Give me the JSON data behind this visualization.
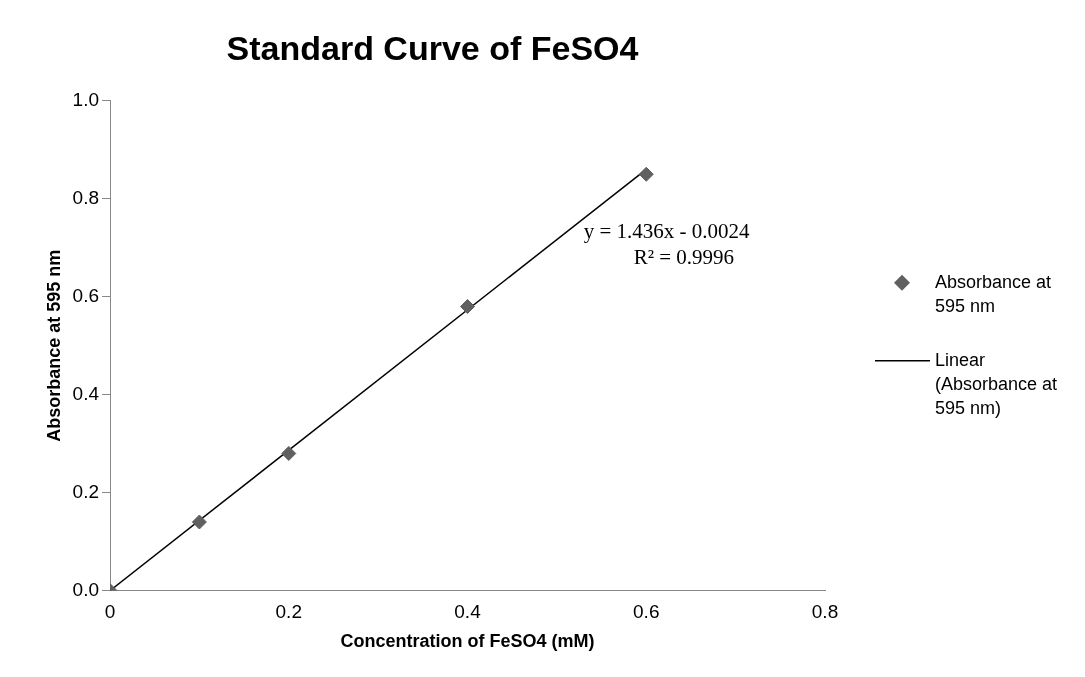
{
  "chart_data": {
    "type": "scatter",
    "title": "Standard Curve of FeSO4",
    "xlabel": "Concentration of FeSO4 (mM)",
    "ylabel": "Absorbance at 595 nm",
    "x": [
      0,
      0.1,
      0.2,
      0.4,
      0.6
    ],
    "series": [
      {
        "name": "Absorbance at 595 nm",
        "color": "#606060",
        "marker": "diamond",
        "values": [
          0,
          0.14,
          0.28,
          0.58,
          0.85
        ]
      },
      {
        "name": "Linear (Absorbance at 595 nm)",
        "type": "line",
        "color": "#000000",
        "marker": "none",
        "line_style": "solid",
        "x": [
          0,
          0.6
        ],
        "values": [
          0,
          0.86
        ]
      }
    ],
    "xlim": [
      0,
      0.8
    ],
    "xticks": [
      {
        "value": 0,
        "label": "0"
      },
      0.2,
      0.4,
      0.6,
      0.8
    ],
    "ylim": [
      0,
      1.0
    ],
    "yticks": [
      {
        "value": 0,
        "label": "0.0"
      },
      0.2,
      0.4,
      0.6,
      0.8,
      {
        "value": 1.0,
        "label": "1.0"
      }
    ],
    "grid": false,
    "legend": "right",
    "annotations": [
      "y = 1.436x - 0.0024",
      "R² = 0.9996"
    ]
  }
}
